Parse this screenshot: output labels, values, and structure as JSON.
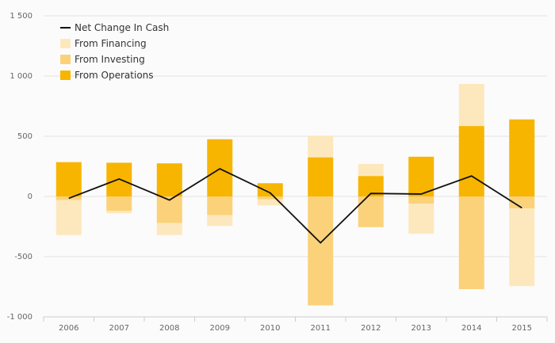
{
  "chart_data": {
    "type": "bar",
    "stacked": true,
    "categories": [
      "2006",
      "2007",
      "2008",
      "2009",
      "2010",
      "2011",
      "2012",
      "2013",
      "2014",
      "2015"
    ],
    "ylim": [
      -1000,
      1500
    ],
    "yticks": [
      -1000,
      -500,
      0,
      500,
      1000,
      1500
    ],
    "ytick_labels": [
      "-1 000",
      "-500",
      "0",
      "500",
      "1 000",
      "1 500"
    ],
    "grid": true,
    "legend_position": "top-left",
    "series": [
      {
        "name": "From Operations",
        "kind": "bar",
        "color": "#f7b500",
        "values": [
          285,
          280,
          275,
          475,
          110,
          325,
          170,
          330,
          585,
          640
        ]
      },
      {
        "name": "From Investing",
        "kind": "bar",
        "color": "#fbd27a",
        "values": [
          -30,
          -120,
          -220,
          -155,
          -25,
          -905,
          -255,
          -60,
          -770,
          -100
        ]
      },
      {
        "name": "From Financing",
        "kind": "bar",
        "color": "#fde8bd",
        "values": [
          -290,
          -20,
          -100,
          -90,
          -50,
          180,
          100,
          -250,
          350,
          -645
        ]
      },
      {
        "name": "Net Change In Cash",
        "kind": "line",
        "color": "#111111",
        "values": [
          -15,
          145,
          -30,
          230,
          30,
          -385,
          25,
          20,
          170,
          -95
        ]
      }
    ]
  },
  "legend": [
    {
      "label": "Net Change In Cash",
      "kind": "line",
      "color": "#111111"
    },
    {
      "label": "From Financing",
      "kind": "box",
      "color": "#fde8bd"
    },
    {
      "label": "From Investing",
      "kind": "box",
      "color": "#fbd27a"
    },
    {
      "label": "From Operations",
      "kind": "box",
      "color": "#f7b500"
    }
  ]
}
